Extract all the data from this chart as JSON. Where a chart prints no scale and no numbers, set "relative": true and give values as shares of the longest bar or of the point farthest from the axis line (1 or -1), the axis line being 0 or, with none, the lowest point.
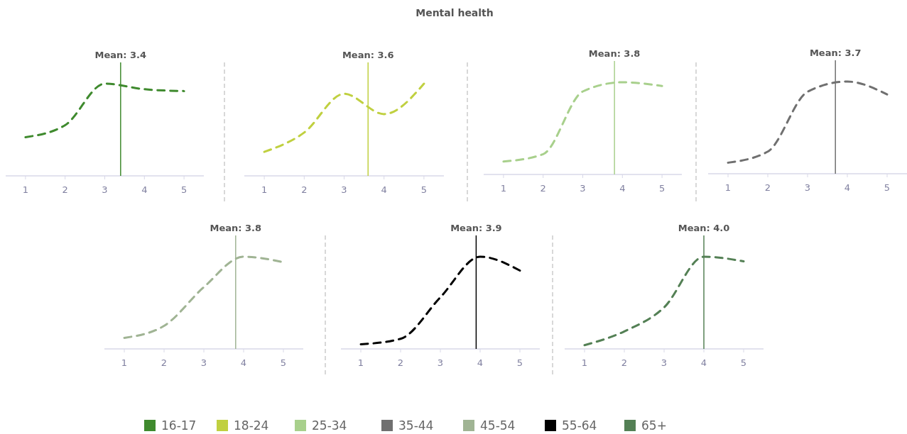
{
  "chart_data": [
    {
      "type": "other",
      "title": "Mental health"
    },
    {
      "type": "line",
      "x": [
        1,
        2,
        3,
        4,
        5
      ],
      "xlim": [
        0.5,
        5.5
      ],
      "xticks": [
        1,
        2,
        3,
        4,
        5
      ],
      "relative": true,
      "line_style": "dashed",
      "legend": "bottom",
      "series": [
        {
          "name": "16-17",
          "color": "#3f8a2e",
          "values": [
            0.42,
            0.55,
            1,
            0.94,
            0.92
          ]
        }
      ],
      "ref_lines": [
        {
          "axis": "x",
          "value": 3.4,
          "label": "Mean: 3.4",
          "color": "#3f8a2e"
        }
      ]
    },
    {
      "type": "line",
      "x": [
        1,
        2,
        3,
        4,
        5
      ],
      "xlim": [
        0.5,
        5.5
      ],
      "xticks": [
        1,
        2,
        3,
        4,
        5
      ],
      "relative": true,
      "line_style": "dashed",
      "legend": "bottom",
      "series": [
        {
          "name": "18-24",
          "color": "#c0d040",
          "values": [
            0.26,
            0.47,
            0.89,
            0.67,
            1
          ]
        }
      ],
      "ref_lines": [
        {
          "axis": "x",
          "value": 3.6,
          "label": "Mean: 3.6",
          "color": "#c0d040"
        }
      ]
    },
    {
      "type": "line",
      "x": [
        1,
        2,
        3,
        4,
        5
      ],
      "xlim": [
        0.5,
        5.5
      ],
      "xticks": [
        1,
        2,
        3,
        4,
        5
      ],
      "relative": true,
      "line_style": "dashed",
      "legend": "bottom",
      "series": [
        {
          "name": "25-34",
          "color": "#a8d08c",
          "values": [
            0.14,
            0.22,
            0.9,
            1,
            0.96
          ]
        }
      ],
      "ref_lines": [
        {
          "axis": "x",
          "value": 3.8,
          "label": "Mean: 3.8",
          "color": "#a8d08c"
        }
      ]
    },
    {
      "type": "line",
      "x": [
        1,
        2,
        3,
        4,
        5
      ],
      "xlim": [
        0.5,
        5.5
      ],
      "xticks": [
        1,
        2,
        3,
        4,
        5
      ],
      "relative": true,
      "line_style": "dashed",
      "legend": "bottom",
      "series": [
        {
          "name": "35-44",
          "color": "#707070",
          "values": [
            0.12,
            0.24,
            0.89,
            1,
            0.86
          ]
        }
      ],
      "ref_lines": [
        {
          "axis": "x",
          "value": 3.7,
          "label": "Mean: 3.7",
          "color": "#707070"
        }
      ]
    },
    {
      "type": "line",
      "x": [
        1,
        2,
        3,
        4,
        5
      ],
      "xlim": [
        0.5,
        5.5
      ],
      "xticks": [
        1,
        2,
        3,
        4,
        5
      ],
      "relative": true,
      "line_style": "dashed",
      "legend": "bottom",
      "series": [
        {
          "name": "45-54",
          "color": "#a0b494",
          "values": [
            0.12,
            0.25,
            0.67,
            1,
            0.94
          ]
        }
      ],
      "ref_lines": [
        {
          "axis": "x",
          "value": 3.8,
          "label": "Mean: 3.8",
          "color": "#a0b494"
        }
      ]
    },
    {
      "type": "line",
      "x": [
        1,
        2,
        3,
        4,
        5
      ],
      "xlim": [
        0.5,
        5.5
      ],
      "xticks": [
        1,
        2,
        3,
        4,
        5
      ],
      "relative": true,
      "line_style": "dashed",
      "legend": "bottom",
      "series": [
        {
          "name": "55-64",
          "color": "#000000",
          "values": [
            0.05,
            0.11,
            0.56,
            1,
            0.85
          ]
        }
      ],
      "ref_lines": [
        {
          "axis": "x",
          "value": 3.9,
          "label": "Mean: 3.9",
          "color": "#000000"
        }
      ]
    },
    {
      "type": "line",
      "x": [
        1,
        2,
        3,
        4,
        5
      ],
      "xlim": [
        0.5,
        5.5
      ],
      "xticks": [
        1,
        2,
        3,
        4,
        5
      ],
      "relative": true,
      "line_style": "dashed",
      "legend": "bottom",
      "series": [
        {
          "name": "65+",
          "color": "#548055",
          "values": [
            0.04,
            0.19,
            0.45,
            1,
            0.95
          ]
        }
      ],
      "ref_lines": [
        {
          "axis": "x",
          "value": 4.0,
          "label": "Mean: 4.0",
          "color": "#548055"
        }
      ]
    }
  ]
}
